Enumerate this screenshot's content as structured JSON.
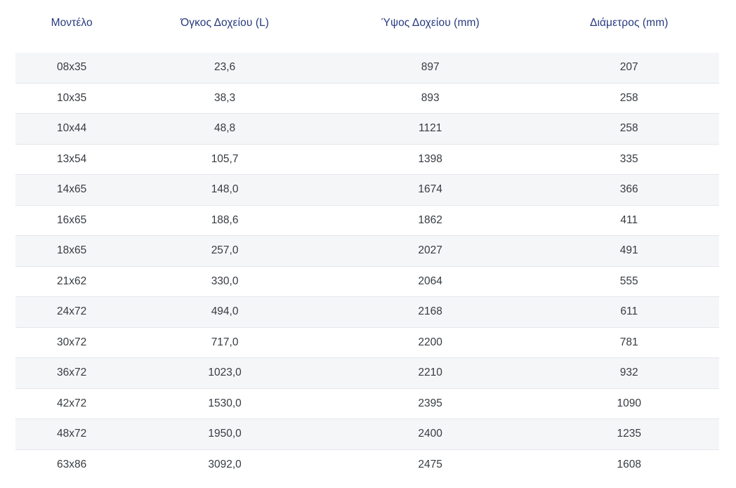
{
  "colors": {
    "header_text": "#273a7f",
    "body_text": "#363b41",
    "row_stripe": "#f5f6f8",
    "row_border": "#e4e6ea",
    "background": "#ffffff"
  },
  "chart_data": {
    "type": "table",
    "columns": [
      "Μοντέλο",
      "Όγκος Δοχείου (L)",
      "Ύψος Δοχείου (mm)",
      "Διάμετρος (mm)"
    ],
    "rows": [
      [
        "08x35",
        "23,6",
        "897",
        "207"
      ],
      [
        "10x35",
        "38,3",
        "893",
        "258"
      ],
      [
        "10x44",
        "48,8",
        "1121",
        "258"
      ],
      [
        "13x54",
        "105,7",
        "1398",
        "335"
      ],
      [
        "14x65",
        "148,0",
        "1674",
        "366"
      ],
      [
        "16x65",
        "188,6",
        "1862",
        "411"
      ],
      [
        "18x65",
        "257,0",
        "2027",
        "491"
      ],
      [
        "21x62",
        "330,0",
        "2064",
        "555"
      ],
      [
        "24x72",
        "494,0",
        "2168",
        "611"
      ],
      [
        "30x72",
        "717,0",
        "2200",
        "781"
      ],
      [
        "36x72",
        "1023,0",
        "2210",
        "932"
      ],
      [
        "42x72",
        "1530,0",
        "2395",
        "1090"
      ],
      [
        "48x72",
        "1950,0",
        "2400",
        "1235"
      ],
      [
        "63x86",
        "3092,0",
        "2475",
        "1608"
      ]
    ]
  }
}
